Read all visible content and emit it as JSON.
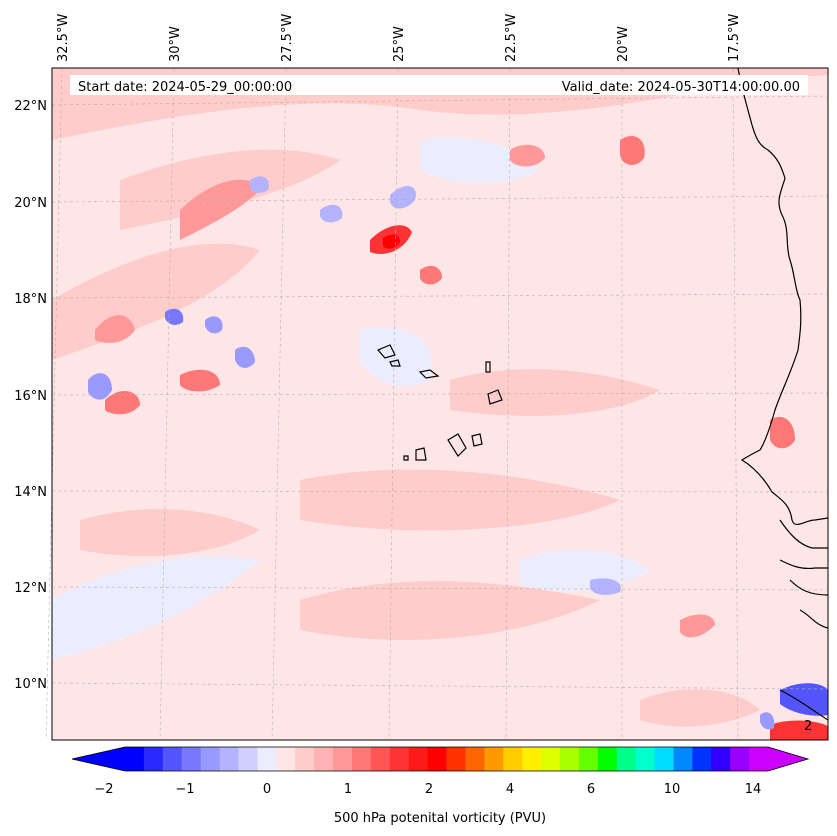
{
  "header": {
    "start_date": "Start date: 2024-05-29_00:00:00",
    "valid_date": "Valid_date: 2024-05-30T14:00:00.00"
  },
  "map": {
    "lon_labels": [
      "32.5°W",
      "30°W",
      "27.5°W",
      "25°W",
      "22.5°W",
      "20°W",
      "17.5°W"
    ],
    "lat_labels": [
      "22°N",
      "20°N",
      "18°N",
      "16°N",
      "14°N",
      "12°N",
      "10°N"
    ],
    "inline_label": "2",
    "field": "500 hPa potential vorticity",
    "colors": {
      "land_coast": "#000000",
      "gridline": "#b0b0b0",
      "background_pv": "#ffe6e6"
    }
  },
  "colorbar": {
    "label": "500 hPa potenital vorticity (PVU)",
    "ticks": [
      "−2",
      "−1",
      "0",
      "1",
      "2",
      "4",
      "6",
      "10",
      "14"
    ],
    "colors": [
      "#0000ff",
      "#2a2aff",
      "#5555ff",
      "#7777ff",
      "#9999ff",
      "#b3b3ff",
      "#d0d0ff",
      "#ececff",
      "#ffe6e6",
      "#ffcccc",
      "#ffb3b3",
      "#ff9999",
      "#ff7777",
      "#ff5555",
      "#ff3333",
      "#ff1a1a",
      "#ff0000",
      "#ff3300",
      "#ff6600",
      "#ff9900",
      "#ffcc00",
      "#ffee00",
      "#ddff00",
      "#aaff00",
      "#66ff00",
      "#00ff00",
      "#00ff88",
      "#00ffcc",
      "#00ddff",
      "#0088ff",
      "#0033ff",
      "#3300ff",
      "#9900ff",
      "#cc00ff"
    ]
  }
}
